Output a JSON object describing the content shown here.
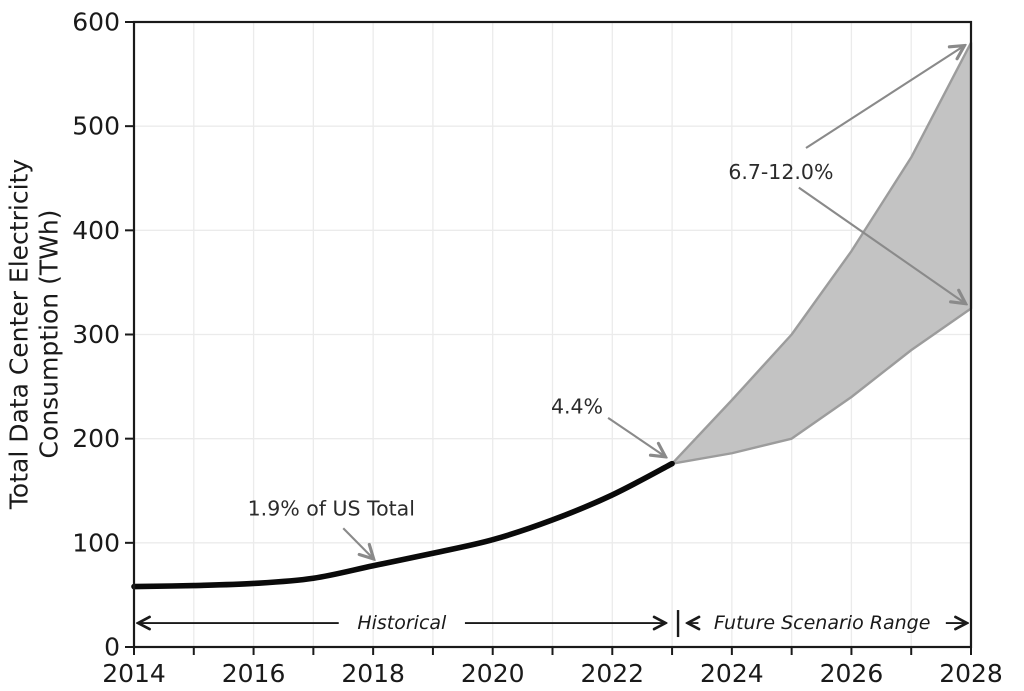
{
  "figure": {
    "ylabel_line1": "Total Data Center Electricity",
    "ylabel_line2": "Consumption (TWh)"
  },
  "chart_data": {
    "type": "line",
    "title": "",
    "xlabel": "",
    "ylabel": "Total Data Center Electricity Consumption (TWh)",
    "xlim": [
      2014,
      2028
    ],
    "ylim": [
      0,
      600
    ],
    "x_ticks": [
      2014,
      2016,
      2018,
      2020,
      2022,
      2024,
      2026,
      2028
    ],
    "x_minor_ticks": [
      2015,
      2017,
      2019,
      2021,
      2023,
      2025,
      2027
    ],
    "y_ticks": [
      0,
      100,
      200,
      300,
      400,
      500,
      600
    ],
    "grid": "on",
    "legend": "none",
    "series": [
      {
        "name": "Historical",
        "x": [
          2014,
          2015,
          2016,
          2017,
          2018,
          2019,
          2020,
          2021,
          2022,
          2023
        ],
        "values": [
          58,
          59,
          61,
          66,
          78,
          90,
          103,
          122,
          146,
          176
        ]
      },
      {
        "name": "Future Scenario Range (upper bound)",
        "x": [
          2023,
          2024,
          2025,
          2026,
          2027,
          2028
        ],
        "values": [
          176,
          237,
          300,
          380,
          470,
          580
        ]
      },
      {
        "name": "Future Scenario Range (lower bound)",
        "x": [
          2023,
          2024,
          2025,
          2026,
          2027,
          2028
        ],
        "values": [
          176,
          186,
          200,
          240,
          285,
          325
        ]
      }
    ],
    "annotations": [
      {
        "id": "us-share-2018",
        "text": "1.9% of US Total",
        "text_x": 2017.3,
        "text_y": 133,
        "arrows": [
          {
            "from": [
              2017.5,
              114
            ],
            "to": [
              2018.0,
              85
            ]
          }
        ]
      },
      {
        "id": "us-share-2023",
        "text": "4.4%",
        "text_x": 2021.41,
        "text_y": 231,
        "arrows": [
          {
            "from": [
              2021.93,
              220
            ],
            "to": [
              2022.88,
              183
            ]
          }
        ]
      },
      {
        "id": "us-share-2028-range",
        "text": "6.7-12.0%",
        "text_x": 2024.82,
        "text_y": 456,
        "arrows": [
          {
            "from": [
              2025.24,
              479
            ],
            "to": [
              2027.88,
              577
            ]
          },
          {
            "from": [
              2025.12,
              441
            ],
            "to": [
              2027.9,
              330
            ]
          }
        ]
      }
    ],
    "range_labels": [
      {
        "id": "historical-range",
        "text": "Historical",
        "from": 2014.08,
        "to": 2022.88,
        "center": 2018.48,
        "y": 23
      },
      {
        "id": "future-range",
        "text": "Future Scenario Range",
        "from": 2023.27,
        "to": 2027.92,
        "center": 2025.51,
        "y": 23
      }
    ],
    "range_divider": {
      "x": 2023.1,
      "y": 23
    },
    "colors": {
      "historical_line": "#0a0a0a",
      "band_fill": "#c3c3c3",
      "band_edge": "#9c9c9c",
      "annotation_arrow": "#8a8a8a",
      "annotation_text": "#2b2b2b",
      "grid": "#ebebeb",
      "axis": "#1a1a1a",
      "background": "#ffffff"
    }
  }
}
